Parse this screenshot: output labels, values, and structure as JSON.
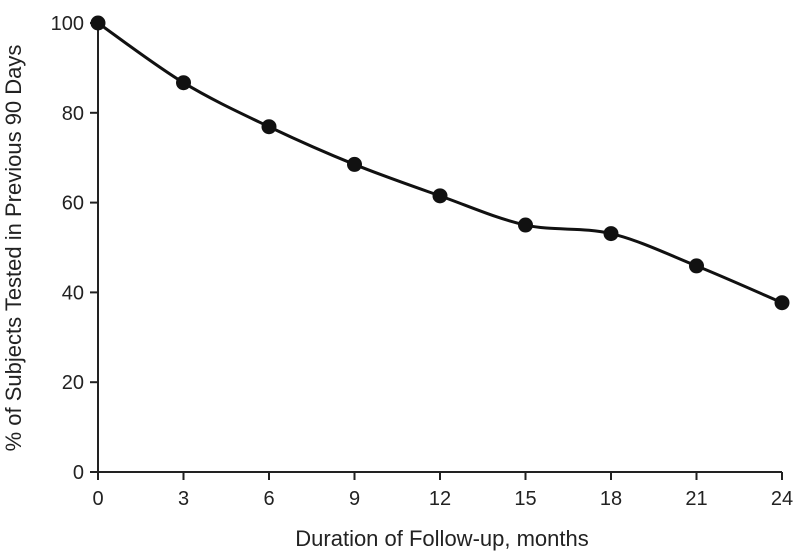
{
  "chart_data": {
    "type": "line",
    "title": "",
    "xlabel": "Duration of Follow-up, months",
    "ylabel": "% of Subjects Tested in Previous 90 Days",
    "xlim": [
      0,
      24
    ],
    "ylim": [
      0,
      100
    ],
    "xticks": [
      0,
      3,
      6,
      9,
      12,
      15,
      18,
      21,
      24
    ],
    "yticks": [
      0,
      20,
      40,
      60,
      80,
      100
    ],
    "grid": false,
    "legend": "none",
    "series": [
      {
        "x": [
          0,
          3,
          6,
          9,
          12,
          15,
          18,
          21,
          24
        ],
        "values": [
          100,
          86.7,
          76.9,
          68.5,
          61.5,
          55.0,
          53.1,
          45.9,
          37.7
        ],
        "color": "#111111",
        "marker": "circle"
      }
    ]
  }
}
